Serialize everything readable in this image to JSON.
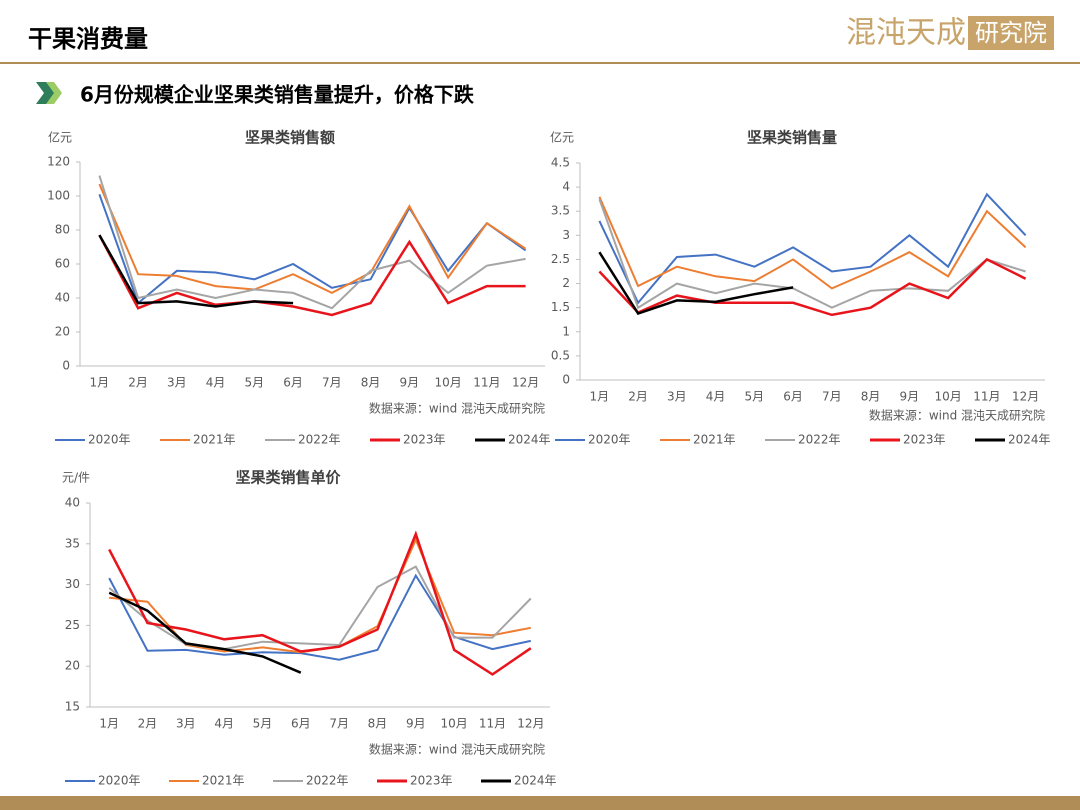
{
  "header": {
    "title": "干果消费量",
    "logo": "混沌天成",
    "logo_box": "研究院",
    "subtitle": "6月份规模企业坚果类销售量提升，价格下跌"
  },
  "chart_data": [
    {
      "type": "line",
      "title": "坚果类销售额",
      "unit": "亿元",
      "source": "数据来源：wind  混沌天成研究院",
      "categories": [
        "1月",
        "2月",
        "3月",
        "4月",
        "5月",
        "6月",
        "7月",
        "8月",
        "9月",
        "10月",
        "11月",
        "12月"
      ],
      "ylim": [
        0,
        120
      ],
      "yticks": [
        0,
        20,
        40,
        60,
        80,
        100,
        120
      ],
      "series": [
        {
          "name": "2020年",
          "color": "#4472c4",
          "values": [
            101,
            37,
            56,
            55,
            51,
            60,
            46,
            51,
            93,
            56,
            84,
            68
          ]
        },
        {
          "name": "2021年",
          "color": "#ed7d31",
          "values": [
            107,
            54,
            53,
            47,
            45,
            54,
            43,
            55,
            94,
            52,
            84,
            69
          ]
        },
        {
          "name": "2022年",
          "color": "#a5a5a5",
          "values": [
            112,
            40,
            45,
            40,
            45,
            43,
            34,
            56,
            62,
            43,
            59,
            63
          ]
        },
        {
          "name": "2023年",
          "color": "#e8141b",
          "values": [
            77,
            34,
            43,
            36,
            38,
            35,
            30,
            37,
            73,
            37,
            47,
            47
          ]
        },
        {
          "name": "2024年",
          "color": "#000000",
          "values": [
            77,
            37,
            38,
            35,
            38,
            37,
            null,
            null,
            null,
            null,
            null,
            null
          ]
        }
      ]
    },
    {
      "type": "line",
      "title": "坚果类销售量",
      "unit": "亿元",
      "source": "数据来源：wind  混沌天成研究院",
      "categories": [
        "1月",
        "2月",
        "3月",
        "4月",
        "5月",
        "6月",
        "7月",
        "8月",
        "9月",
        "10月",
        "11月",
        "12月"
      ],
      "ylim": [
        0,
        4.5
      ],
      "yticks": [
        0,
        0.5,
        1,
        1.5,
        2,
        2.5,
        3,
        3.5,
        4,
        4.5
      ],
      "series": [
        {
          "name": "2020年",
          "color": "#4472c4",
          "values": [
            3.3,
            1.6,
            2.55,
            2.6,
            2.35,
            2.75,
            2.25,
            2.35,
            3.0,
            2.35,
            3.85,
            3.0
          ]
        },
        {
          "name": "2021年",
          "color": "#ed7d31",
          "values": [
            3.8,
            1.95,
            2.35,
            2.15,
            2.05,
            2.5,
            1.9,
            2.25,
            2.65,
            2.15,
            3.5,
            2.75
          ]
        },
        {
          "name": "2022年",
          "color": "#a5a5a5",
          "values": [
            3.75,
            1.5,
            2.0,
            1.8,
            2.0,
            1.9,
            1.5,
            1.85,
            1.9,
            1.85,
            2.5,
            2.25
          ]
        },
        {
          "name": "2023年",
          "color": "#e8141b",
          "values": [
            2.25,
            1.4,
            1.75,
            1.6,
            1.6,
            1.6,
            1.35,
            1.5,
            2.0,
            1.7,
            2.5,
            2.1
          ]
        },
        {
          "name": "2024年",
          "color": "#000000",
          "values": [
            2.65,
            1.38,
            1.65,
            1.62,
            1.78,
            1.92,
            null,
            null,
            null,
            null,
            null,
            null
          ]
        }
      ]
    },
    {
      "type": "line",
      "title": "坚果类销售单价",
      "unit": "元/件",
      "source": "数据来源：wind  混沌天成研究院",
      "categories": [
        "1月",
        "2月",
        "3月",
        "4月",
        "5月",
        "6月",
        "7月",
        "8月",
        "9月",
        "10月",
        "11月",
        "12月"
      ],
      "ylim": [
        15,
        40
      ],
      "yticks": [
        15,
        20,
        25,
        30,
        35,
        40
      ],
      "series": [
        {
          "name": "2020年",
          "color": "#4472c4",
          "values": [
            30.8,
            21.9,
            22.0,
            21.4,
            21.7,
            21.6,
            20.8,
            22.0,
            31.1,
            23.6,
            22.1,
            23.1
          ]
        },
        {
          "name": "2021年",
          "color": "#ed7d31",
          "values": [
            28.4,
            27.9,
            22.6,
            21.8,
            22.3,
            21.7,
            22.4,
            24.9,
            35.5,
            24.1,
            23.8,
            24.7
          ]
        },
        {
          "name": "2022年",
          "color": "#a5a5a5",
          "values": [
            29.6,
            25.6,
            22.7,
            22.1,
            23.0,
            22.8,
            22.6,
            29.7,
            32.2,
            23.5,
            23.5,
            28.3
          ]
        },
        {
          "name": "2023年",
          "color": "#e8141b",
          "values": [
            34.3,
            25.3,
            24.5,
            23.3,
            23.8,
            21.8,
            22.4,
            24.5,
            36.2,
            22.0,
            19.0,
            22.2
          ]
        },
        {
          "name": "2024年",
          "color": "#000000",
          "values": [
            29.0,
            26.8,
            22.8,
            22.1,
            21.2,
            19.2,
            null,
            null,
            null,
            null,
            null,
            null
          ]
        }
      ]
    }
  ]
}
